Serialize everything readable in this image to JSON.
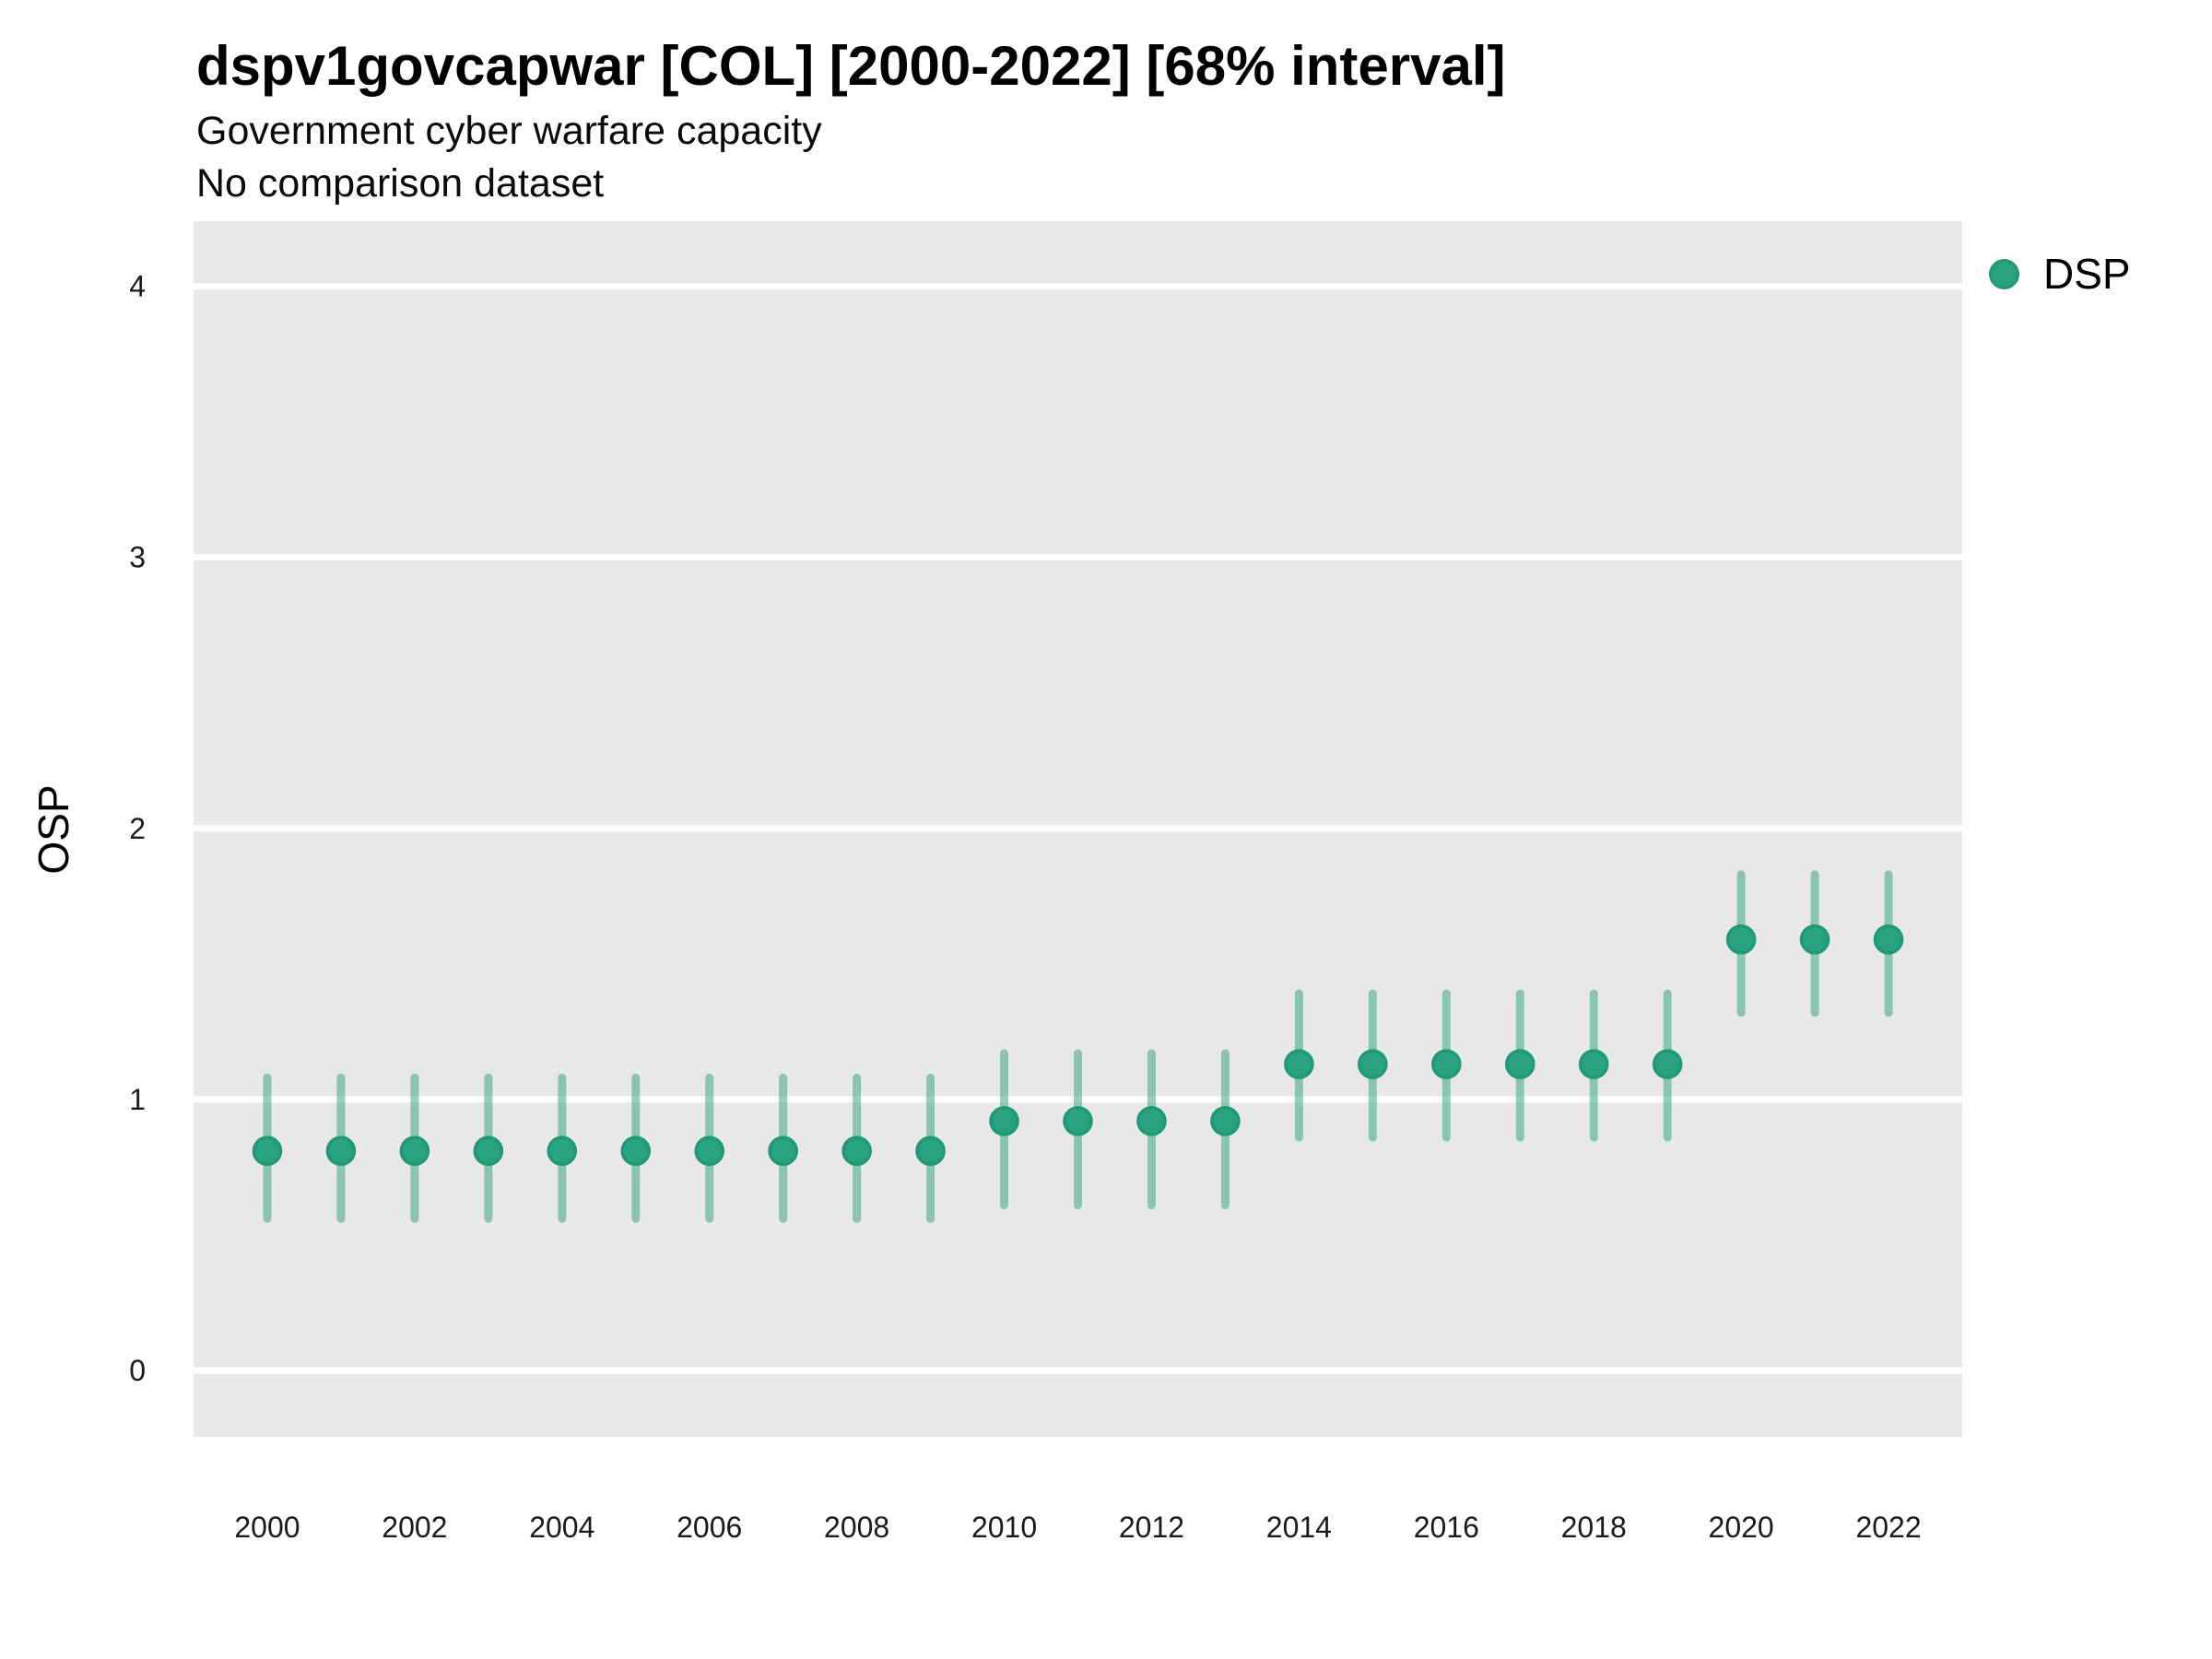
{
  "header": {
    "title": "dspv1govcapwar [COL] [2000-2022] [68% interval]",
    "subtitle": "Government cyber warfare capacity",
    "note": "No comparison dataset"
  },
  "legend": {
    "position": "top-right",
    "items": [
      {
        "label": "DSP",
        "marker": "circle",
        "color": "#2BA27E"
      }
    ]
  },
  "colors": {
    "panel_bg": "#E8E8E8",
    "grid": "#FFFFFF",
    "point_fill": "#2BA27E",
    "point_stroke": "#1F9A75",
    "interval_line": "rgba(43,162,126,0.5)",
    "tick_text": "#1A1A1A",
    "title_text": "#000000"
  },
  "chart_data": {
    "type": "scatter",
    "subtype": "pointrange",
    "title": "dspv1govcapwar [COL] [2000-2022] [68% interval]",
    "subtitle": "Government cyber warfare capacity",
    "note": "No comparison dataset",
    "interval": "68% interval",
    "xlabel": "",
    "ylabel": "OSP",
    "x": [
      2000,
      2001,
      2002,
      2003,
      2004,
      2005,
      2006,
      2007,
      2008,
      2009,
      2010,
      2011,
      2012,
      2013,
      2014,
      2015,
      2016,
      2017,
      2018,
      2019,
      2020,
      2021,
      2022
    ],
    "series": [
      {
        "name": "DSP",
        "estimate": [
          0.81,
          0.81,
          0.81,
          0.81,
          0.81,
          0.81,
          0.81,
          0.81,
          0.81,
          0.81,
          0.92,
          0.92,
          0.92,
          0.92,
          1.13,
          1.13,
          1.13,
          1.13,
          1.13,
          1.13,
          1.59,
          1.59,
          1.59
        ],
        "lower": [
          0.56,
          0.56,
          0.56,
          0.56,
          0.56,
          0.56,
          0.56,
          0.56,
          0.56,
          0.56,
          0.61,
          0.61,
          0.61,
          0.61,
          0.86,
          0.86,
          0.86,
          0.86,
          0.86,
          0.86,
          1.32,
          1.32,
          1.32
        ],
        "upper": [
          1.08,
          1.08,
          1.08,
          1.08,
          1.08,
          1.08,
          1.08,
          1.08,
          1.08,
          1.08,
          1.17,
          1.17,
          1.17,
          1.17,
          1.39,
          1.39,
          1.39,
          1.39,
          1.39,
          1.39,
          1.83,
          1.83,
          1.83
        ]
      }
    ],
    "xticks": [
      2000,
      2002,
      2004,
      2006,
      2008,
      2010,
      2012,
      2014,
      2016,
      2018,
      2020,
      2022
    ],
    "yticks": [
      0,
      1,
      2,
      3,
      4
    ],
    "xlim": [
      1999,
      2023
    ],
    "ylim": [
      -0.245,
      4.24
    ],
    "grid": "horizontal-major-only",
    "legend_position": "right"
  }
}
